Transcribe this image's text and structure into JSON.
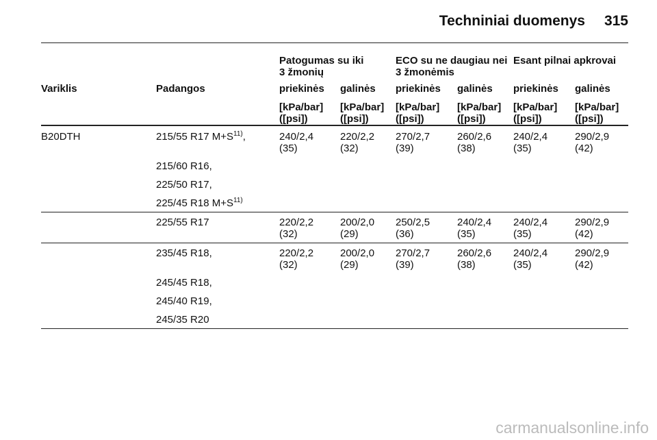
{
  "header": {
    "title": "Techniniai duomenys",
    "page": "315"
  },
  "table": {
    "groups": [
      {
        "lines": [
          "Patogumas su iki",
          "3 žmonių"
        ]
      },
      {
        "lines": [
          "ECO su ne daugiau nei",
          "3 žmonėmis"
        ]
      },
      {
        "lines": [
          "Esant pilnai apkrovai"
        ]
      }
    ],
    "columns": [
      "Variklis",
      "Padangos",
      "priekinės",
      "galinės",
      "priekinės",
      "galinės",
      "priekinės",
      "galinės"
    ],
    "units": [
      [
        "[kPa/bar]",
        "([psi])"
      ],
      [
        "[kPa/bar]",
        "([psi])"
      ],
      [
        "[kPa/bar]",
        "([psi])"
      ],
      [
        "[kPa/bar]",
        "([psi])"
      ],
      [
        "[kPa/bar]",
        "([psi])"
      ],
      [
        "[kPa/bar]",
        "([psi])"
      ]
    ],
    "sections": [
      {
        "engine": "B20DTH",
        "rows": [
          {
            "tires": [
              {
                "text": "215/55 R17 M+S",
                "sup": "11)",
                "after": ","
              },
              {
                "text": "215/60 R16,"
              },
              {
                "text": "225/50 R17,"
              },
              {
                "text": "225/45 R18 M+S",
                "sup": "11)"
              }
            ],
            "values": [
              [
                "240/2,4",
                "(35)"
              ],
              [
                "220/2,2",
                "(32)"
              ],
              [
                "270/2,7",
                "(39)"
              ],
              [
                "260/2,6",
                "(38)"
              ],
              [
                "240/2,4",
                "(35)"
              ],
              [
                "290/2,9",
                "(42)"
              ]
            ]
          },
          {
            "tires": [
              {
                "text": "225/55 R17"
              }
            ],
            "values": [
              [
                "220/2,2",
                "(32)"
              ],
              [
                "200/2,0",
                "(29)"
              ],
              [
                "250/2,5",
                "(36)"
              ],
              [
                "240/2,4",
                "(35)"
              ],
              [
                "240/2,4",
                "(35)"
              ],
              [
                "290/2,9",
                "(42)"
              ]
            ]
          },
          {
            "tires": [
              {
                "text": "235/45 R18,"
              },
              {
                "text": "245/45 R18,"
              },
              {
                "text": "245/40 R19,"
              },
              {
                "text": "245/35 R20"
              }
            ],
            "values": [
              [
                "220/2,2",
                "(32)"
              ],
              [
                "200/2,0",
                "(29)"
              ],
              [
                "270/2,7",
                "(39)"
              ],
              [
                "260/2,6",
                "(38)"
              ],
              [
                "240/2,4",
                "(35)"
              ],
              [
                "290/2,9",
                "(42)"
              ]
            ]
          }
        ]
      }
    ]
  },
  "footer": {
    "watermark": "carmanualsonline.info"
  }
}
